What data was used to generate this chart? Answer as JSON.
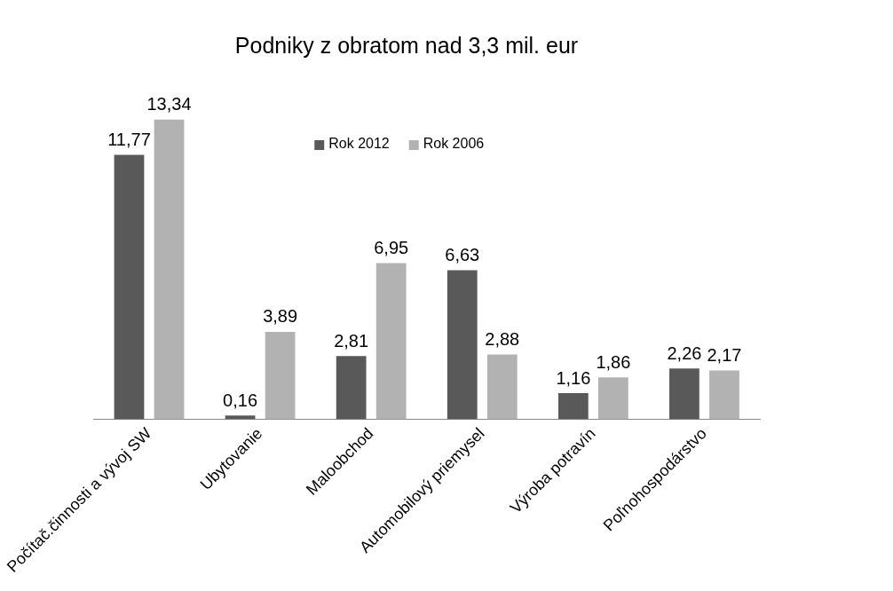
{
  "chart_data": {
    "type": "bar",
    "title": "Podniky z obratom nad 3,3 mil. eur",
    "categories": [
      "Počítač.činnosti a vývoj SW",
      "Ubytovanie",
      "Maloobchod",
      "Automobilový priemysel",
      "Výroba potravín",
      "Poľnohospodárstvo"
    ],
    "series": [
      {
        "name": "Rok 2012",
        "color": "#595959",
        "values": [
          11.77,
          0.16,
          2.81,
          6.63,
          1.16,
          2.26
        ],
        "value_labels": [
          "11,77",
          "0,16",
          "2,81",
          "6,63",
          "1,16",
          "2,26"
        ]
      },
      {
        "name": "Rok 2006",
        "color": "#b2b2b2",
        "values": [
          13.34,
          3.89,
          6.95,
          2.88,
          1.86,
          2.17
        ],
        "value_labels": [
          "13,34",
          "3,89",
          "6,95",
          "2,88",
          "1,86",
          "2,17"
        ]
      }
    ],
    "legend": "top",
    "grid": false
  }
}
